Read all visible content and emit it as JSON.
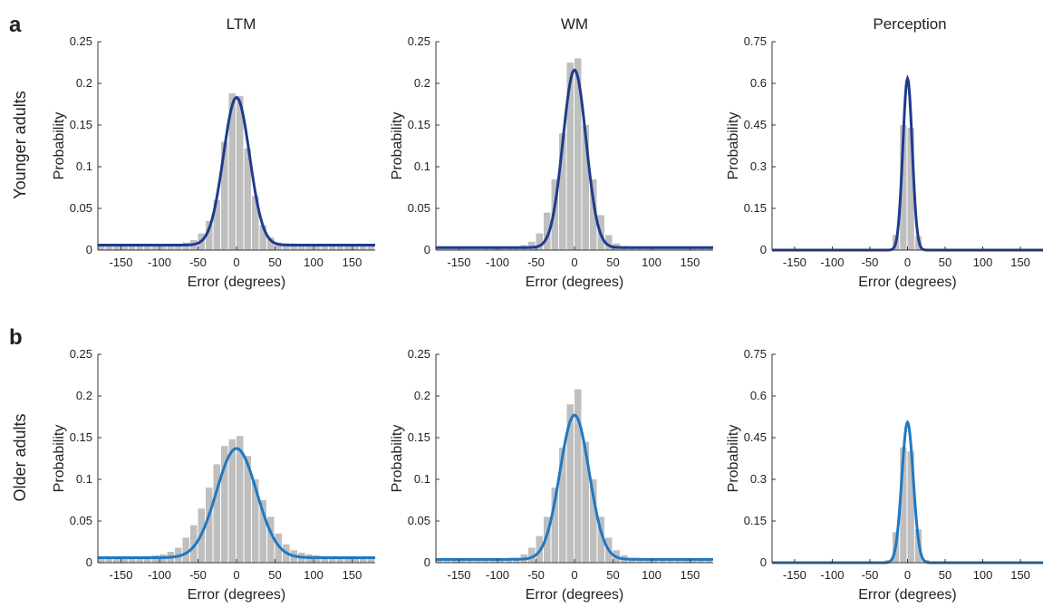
{
  "figure": {
    "panel_letters": [
      "a",
      "b"
    ],
    "column_titles": [
      "LTM",
      "WM",
      "Perception"
    ],
    "row_labels": [
      "Younger adults",
      "Older adults"
    ],
    "colors": {
      "bars": "#bfbfbf",
      "younger_curve": "#1f3b8f",
      "older_curve": "#1f78c1"
    }
  },
  "chart_data": [
    {
      "type": "bar",
      "group": "Younger adults",
      "condition": "LTM",
      "title": "LTM",
      "xlabel": "Error (degrees)",
      "ylabel": "Probability",
      "xlim": [
        -180,
        180
      ],
      "ylim": [
        0,
        0.25
      ],
      "xticks": [
        -150,
        -100,
        -50,
        0,
        50,
        100,
        150
      ],
      "yticks": [
        0,
        0.05,
        0.1,
        0.15,
        0.2,
        0.25
      ],
      "ytick_labels": [
        "0",
        "0.05",
        "0.1",
        "0.15",
        "0.2",
        "0.25"
      ],
      "bin_width": 10,
      "bin_centers": [
        -175,
        -165,
        -155,
        -145,
        -135,
        -125,
        -115,
        -105,
        -95,
        -85,
        -75,
        -65,
        -55,
        -45,
        -35,
        -25,
        -15,
        -5,
        5,
        15,
        25,
        35,
        45,
        55,
        65,
        75,
        85,
        95,
        105,
        115,
        125,
        135,
        145,
        155,
        165,
        175
      ],
      "histogram": [
        0.006,
        0.005,
        0.006,
        0.005,
        0.006,
        0.005,
        0.006,
        0.005,
        0.006,
        0.006,
        0.007,
        0.009,
        0.012,
        0.02,
        0.035,
        0.06,
        0.13,
        0.188,
        0.185,
        0.122,
        0.065,
        0.03,
        0.015,
        0.009,
        0.008,
        0.008,
        0.007,
        0.006,
        0.006,
        0.005,
        0.006,
        0.005,
        0.006,
        0.005,
        0.006,
        0.005
      ],
      "fit": {
        "guess": 0.006,
        "peak": 0.183,
        "sigma": 17
      },
      "curve_color": "#1f3b8f"
    },
    {
      "type": "bar",
      "group": "Younger adults",
      "condition": "WM",
      "title": "WM",
      "xlabel": "Error (degrees)",
      "ylabel": "Probability",
      "xlim": [
        -180,
        180
      ],
      "ylim": [
        0,
        0.25
      ],
      "xticks": [
        -150,
        -100,
        -50,
        0,
        50,
        100,
        150
      ],
      "yticks": [
        0,
        0.05,
        0.1,
        0.15,
        0.2,
        0.25
      ],
      "ytick_labels": [
        "0",
        "0.05",
        "0.1",
        "0.15",
        "0.2",
        "0.25"
      ],
      "bin_width": 10,
      "bin_centers": [
        -175,
        -165,
        -155,
        -145,
        -135,
        -125,
        -115,
        -105,
        -95,
        -85,
        -75,
        -65,
        -55,
        -45,
        -35,
        -25,
        -15,
        -5,
        5,
        15,
        25,
        35,
        45,
        55,
        65,
        75,
        85,
        95,
        105,
        115,
        125,
        135,
        145,
        155,
        165,
        175
      ],
      "histogram": [
        0.003,
        0.003,
        0.003,
        0.003,
        0.003,
        0.003,
        0.003,
        0.003,
        0.003,
        0.003,
        0.004,
        0.006,
        0.01,
        0.02,
        0.045,
        0.085,
        0.14,
        0.225,
        0.23,
        0.15,
        0.085,
        0.042,
        0.018,
        0.008,
        0.005,
        0.004,
        0.003,
        0.003,
        0.003,
        0.003,
        0.003,
        0.003,
        0.003,
        0.003,
        0.003,
        0.003
      ],
      "fit": {
        "guess": 0.003,
        "peak": 0.216,
        "sigma": 15
      },
      "curve_color": "#1f3b8f"
    },
    {
      "type": "bar",
      "group": "Younger adults",
      "condition": "Perception",
      "title": "Perception",
      "xlabel": "Error (degrees)",
      "ylabel": "Probability",
      "xlim": [
        -180,
        180
      ],
      "ylim": [
        0,
        0.75
      ],
      "xticks": [
        -150,
        -100,
        -50,
        0,
        50,
        100,
        150
      ],
      "yticks": [
        0,
        0.15,
        0.3,
        0.45,
        0.6,
        0.75
      ],
      "ytick_labels": [
        "0",
        "0.15",
        "0.3",
        "0.45",
        "0.6",
        "0.75"
      ],
      "bin_width": 10,
      "bin_centers": [
        -175,
        -165,
        -155,
        -145,
        -135,
        -125,
        -115,
        -105,
        -95,
        -85,
        -75,
        -65,
        -55,
        -45,
        -35,
        -25,
        -15,
        -5,
        5,
        15,
        25,
        35,
        45,
        55,
        65,
        75,
        85,
        95,
        105,
        115,
        125,
        135,
        145,
        155,
        165,
        175
      ],
      "histogram": [
        0,
        0,
        0,
        0,
        0,
        0,
        0,
        0,
        0,
        0,
        0,
        0,
        0,
        0,
        0,
        0.005,
        0.055,
        0.45,
        0.44,
        0.05,
        0.005,
        0,
        0,
        0,
        0,
        0,
        0,
        0,
        0,
        0,
        0,
        0,
        0,
        0,
        0,
        0
      ],
      "fit": {
        "guess": 0,
        "peak": 0.617,
        "sigma": 6.2
      },
      "curve_color": "#1f3b8f"
    },
    {
      "type": "bar",
      "group": "Older adults",
      "condition": "LTM",
      "title": "",
      "xlabel": "Error (degrees)",
      "ylabel": "Probability",
      "xlim": [
        -180,
        180
      ],
      "ylim": [
        0,
        0.25
      ],
      "xticks": [
        -150,
        -100,
        -50,
        0,
        50,
        100,
        150
      ],
      "yticks": [
        0,
        0.05,
        0.1,
        0.15,
        0.2,
        0.25
      ],
      "ytick_labels": [
        "0",
        "0.05",
        "0.1",
        "0.15",
        "0.2",
        "0.25"
      ],
      "bin_width": 10,
      "bin_centers": [
        -175,
        -165,
        -155,
        -145,
        -135,
        -125,
        -115,
        -105,
        -95,
        -85,
        -75,
        -65,
        -55,
        -45,
        -35,
        -25,
        -15,
        -5,
        5,
        15,
        25,
        35,
        45,
        55,
        65,
        75,
        85,
        95,
        105,
        115,
        125,
        135,
        145,
        155,
        165,
        175
      ],
      "histogram": [
        0.007,
        0.006,
        0.007,
        0.006,
        0.007,
        0.007,
        0.008,
        0.009,
        0.01,
        0.013,
        0.018,
        0.03,
        0.045,
        0.065,
        0.09,
        0.118,
        0.14,
        0.148,
        0.152,
        0.128,
        0.1,
        0.075,
        0.055,
        0.035,
        0.022,
        0.015,
        0.012,
        0.01,
        0.009,
        0.008,
        0.008,
        0.007,
        0.007,
        0.006,
        0.007,
        0.006
      ],
      "fit": {
        "guess": 0.006,
        "peak": 0.137,
        "sigma": 26
      },
      "curve_color": "#1f78c1"
    },
    {
      "type": "bar",
      "group": "Older adults",
      "condition": "WM",
      "title": "",
      "xlabel": "Error (degrees)",
      "ylabel": "Probability",
      "xlim": [
        -180,
        180
      ],
      "ylim": [
        0,
        0.25
      ],
      "xticks": [
        -150,
        -100,
        -50,
        0,
        50,
        100,
        150
      ],
      "yticks": [
        0,
        0.05,
        0.1,
        0.15,
        0.2,
        0.25
      ],
      "ytick_labels": [
        "0",
        "0.05",
        "0.1",
        "0.15",
        "0.2",
        "0.25"
      ],
      "bin_width": 10,
      "bin_centers": [
        -175,
        -165,
        -155,
        -145,
        -135,
        -125,
        -115,
        -105,
        -95,
        -85,
        -75,
        -65,
        -55,
        -45,
        -35,
        -25,
        -15,
        -5,
        5,
        15,
        25,
        35,
        45,
        55,
        65,
        75,
        85,
        95,
        105,
        115,
        125,
        135,
        145,
        155,
        165,
        175
      ],
      "histogram": [
        0.004,
        0.004,
        0.004,
        0.004,
        0.004,
        0.004,
        0.004,
        0.004,
        0.004,
        0.005,
        0.006,
        0.01,
        0.018,
        0.032,
        0.055,
        0.09,
        0.138,
        0.19,
        0.208,
        0.145,
        0.1,
        0.055,
        0.03,
        0.015,
        0.009,
        0.006,
        0.005,
        0.004,
        0.004,
        0.004,
        0.004,
        0.004,
        0.004,
        0.004,
        0.004,
        0.004
      ],
      "fit": {
        "guess": 0.004,
        "peak": 0.177,
        "sigma": 19
      },
      "curve_color": "#1f78c1"
    },
    {
      "type": "bar",
      "group": "Older adults",
      "condition": "Perception",
      "title": "",
      "xlabel": "Error (degrees)",
      "ylabel": "Probability",
      "xlim": [
        -180,
        180
      ],
      "ylim": [
        0,
        0.75
      ],
      "xticks": [
        -150,
        -100,
        -50,
        0,
        50,
        100,
        150
      ],
      "yticks": [
        0,
        0.15,
        0.3,
        0.45,
        0.6,
        0.75
      ],
      "ytick_labels": [
        "0",
        "0.15",
        "0.3",
        "0.45",
        "0.6",
        "0.75"
      ],
      "bin_width": 10,
      "bin_centers": [
        -175,
        -165,
        -155,
        -145,
        -135,
        -125,
        -115,
        -105,
        -95,
        -85,
        -75,
        -65,
        -55,
        -45,
        -35,
        -25,
        -15,
        -5,
        5,
        15,
        25,
        35,
        45,
        55,
        65,
        75,
        85,
        95,
        105,
        115,
        125,
        135,
        145,
        155,
        165,
        175
      ],
      "histogram": [
        0,
        0,
        0,
        0,
        0,
        0,
        0,
        0,
        0,
        0,
        0,
        0,
        0,
        0,
        0.002,
        0.01,
        0.11,
        0.415,
        0.4,
        0.12,
        0.01,
        0.002,
        0,
        0,
        0,
        0,
        0,
        0,
        0,
        0,
        0,
        0,
        0,
        0,
        0,
        0
      ],
      "fit": {
        "guess": 0,
        "peak": 0.505,
        "sigma": 7.6
      },
      "curve_color": "#1f78c1"
    }
  ]
}
